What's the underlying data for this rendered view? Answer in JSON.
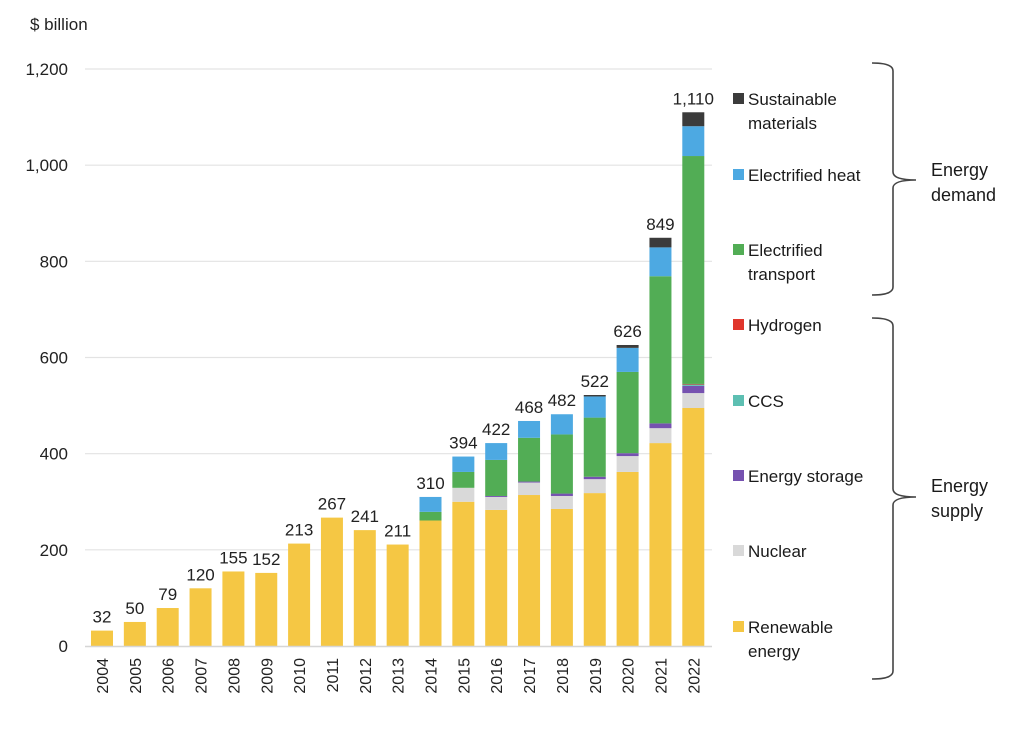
{
  "chart_data": {
    "type": "bar",
    "stacked": true,
    "title": "",
    "ylabel": "$ billion",
    "xlabel": "",
    "ylim": [
      0,
      1200
    ],
    "yticks": [
      0,
      200,
      400,
      600,
      800,
      1000,
      1200
    ],
    "ytick_labels": [
      "0",
      "200",
      "400",
      "600",
      "800",
      "1,000",
      "1,200"
    ],
    "grid": true,
    "categories": [
      "2004",
      "2005",
      "2006",
      "2007",
      "2008",
      "2009",
      "2010",
      "2011",
      "2012",
      "2013",
      "2014",
      "2015",
      "2016",
      "2017",
      "2018",
      "2019",
      "2020",
      "2021",
      "2022"
    ],
    "totals": [
      32,
      50,
      79,
      120,
      155,
      152,
      213,
      267,
      241,
      211,
      310,
      394,
      422,
      468,
      482,
      522,
      626,
      849,
      1110
    ],
    "total_labels": [
      "32",
      "50",
      "79",
      "120",
      "155",
      "152",
      "213",
      "267",
      "241",
      "211",
      "310",
      "394",
      "422",
      "468",
      "482",
      "522",
      "626",
      "849",
      "1,110"
    ],
    "series": [
      {
        "name": "Renewable energy",
        "color": "#F5C744",
        "values": [
          32,
          50,
          79,
          120,
          155,
          152,
          213,
          267,
          241,
          211,
          261,
          300,
          283,
          314,
          285,
          318,
          362,
          422,
          495
        ]
      },
      {
        "name": "Nuclear",
        "color": "#D9D9D9",
        "values": [
          0,
          0,
          0,
          0,
          0,
          0,
          0,
          0,
          0,
          0,
          0,
          29,
          27,
          26,
          27,
          29,
          33,
          31,
          31
        ]
      },
      {
        "name": "Energy storage",
        "color": "#7652B0",
        "values": [
          0,
          0,
          0,
          0,
          0,
          0,
          0,
          0,
          0,
          0,
          0,
          0,
          2,
          2,
          5,
          5,
          6,
          10,
          15
        ]
      },
      {
        "name": "CCS",
        "color": "#5DBFB2",
        "values": [
          0,
          0,
          0,
          0,
          0,
          0,
          0,
          0,
          0,
          0,
          0,
          0,
          0,
          0,
          0,
          0,
          0,
          0,
          3
        ]
      },
      {
        "name": "Hydrogen",
        "color": "#E0362C",
        "values": [
          0,
          0,
          0,
          0,
          0,
          0,
          0,
          0,
          0,
          0,
          0,
          0,
          0,
          0,
          0,
          0,
          0,
          0,
          1
        ]
      },
      {
        "name": "Electrified transport",
        "color": "#52AD55",
        "values": [
          0,
          0,
          0,
          0,
          0,
          0,
          0,
          0,
          0,
          0,
          18,
          33,
          75,
          91,
          123,
          123,
          169,
          306,
          474
        ]
      },
      {
        "name": "Electrified heat",
        "color": "#4DA9E2",
        "values": [
          0,
          0,
          0,
          0,
          0,
          0,
          0,
          0,
          0,
          0,
          31,
          32,
          35,
          35,
          42,
          44,
          50,
          60,
          62
        ]
      },
      {
        "name": "Sustainable materials",
        "color": "#3B3B3B",
        "values": [
          0,
          0,
          0,
          0,
          0,
          0,
          0,
          0,
          0,
          0,
          0,
          0,
          0,
          0,
          0,
          3,
          6,
          20,
          29
        ]
      }
    ],
    "legend": {
      "placement": "right",
      "items": [
        {
          "label_lines": [
            "Sustainable",
            "materials"
          ],
          "color": "#3B3B3B"
        },
        {
          "label_lines": [
            "Electrified heat"
          ],
          "color": "#4DA9E2"
        },
        {
          "label_lines": [
            "Electrified",
            "transport"
          ],
          "color": "#52AD55"
        },
        {
          "label_lines": [
            "Hydrogen"
          ],
          "color": "#E0362C"
        },
        {
          "label_lines": [
            "CCS"
          ],
          "color": "#5DBFB2"
        },
        {
          "label_lines": [
            "Energy storage"
          ],
          "color": "#7652B0"
        },
        {
          "label_lines": [
            "Nuclear"
          ],
          "color": "#D9D9D9"
        },
        {
          "label_lines": [
            "Renewable",
            "energy"
          ],
          "color": "#F5C744"
        }
      ],
      "groups": [
        {
          "label_lines": [
            "Energy",
            "demand"
          ],
          "members": [
            "Sustainable materials",
            "Electrified heat",
            "Electrified transport"
          ]
        },
        {
          "label_lines": [
            "Energy",
            "supply"
          ],
          "members": [
            "Hydrogen",
            "CCS",
            "Energy storage",
            "Nuclear",
            "Renewable energy"
          ]
        }
      ]
    }
  }
}
